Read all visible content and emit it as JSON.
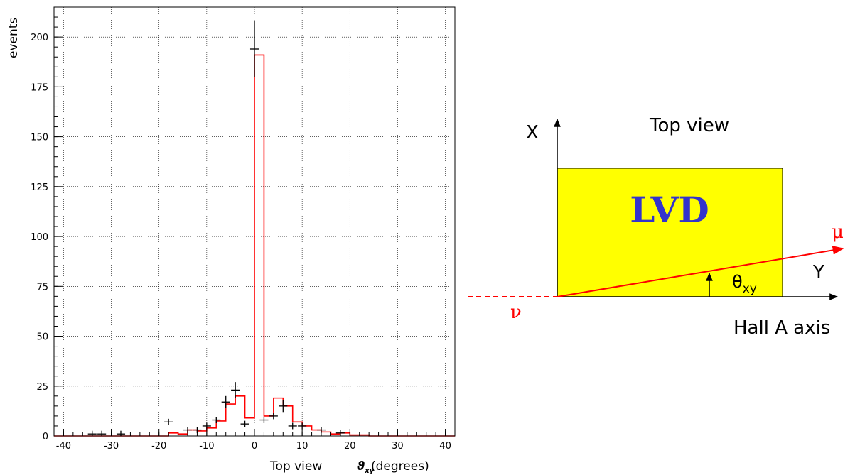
{
  "chart_data": {
    "type": "histogram",
    "xlabel": "Top view",
    "xlabel_symbol": "ϑ",
    "xlabel_symbol_sub": "xy",
    "xlabel_unit": "(degrees)",
    "ylabel": "events",
    "xlim": [
      -42,
      42
    ],
    "ylim": [
      0,
      215
    ],
    "grid": true,
    "x_ticks": [
      -40,
      -30,
      -20,
      -10,
      0,
      10,
      20,
      30,
      40
    ],
    "y_ticks": [
      0,
      25,
      50,
      75,
      100,
      125,
      150,
      175,
      200
    ],
    "histogram": {
      "color": "#ff0000",
      "bin_edges": [
        -42,
        -40,
        -38,
        -36,
        -34,
        -32,
        -30,
        -28,
        -26,
        -24,
        -22,
        -20,
        -18,
        -16,
        -14,
        -12,
        -10,
        -8,
        -6,
        -4,
        -2,
        0,
        2,
        4,
        6,
        8,
        10,
        12,
        14,
        16,
        18,
        20,
        22,
        24,
        26,
        28,
        30,
        32,
        34,
        36,
        38,
        40,
        42
      ],
      "counts": [
        0,
        0,
        0,
        0,
        0,
        0,
        0,
        0,
        0,
        0,
        0,
        0,
        1.5,
        1,
        3,
        2.5,
        4,
        7.5,
        16,
        20,
        9,
        191,
        10,
        19,
        15,
        7,
        5,
        3,
        2,
        1,
        1.5,
        0.5,
        0.5,
        0,
        0,
        0,
        0,
        0,
        0,
        0,
        0,
        0
      ]
    },
    "data_points": {
      "color": "#000000",
      "x": [
        -34,
        -32,
        -28,
        -18,
        -14,
        -12,
        -10,
        -8,
        -6,
        -4,
        -2,
        0,
        2,
        4,
        6,
        8,
        10,
        14,
        18
      ],
      "y": [
        1,
        1,
        1,
        7,
        3,
        3,
        5,
        8,
        17,
        23,
        6,
        194,
        8,
        10,
        15,
        5,
        5,
        3,
        1.5
      ],
      "err": [
        0,
        0,
        0,
        0,
        0,
        0,
        0,
        0,
        3,
        4,
        0,
        14,
        0,
        0,
        3,
        0,
        0,
        0,
        0
      ]
    }
  },
  "diagram": {
    "title": "Top view",
    "box_label": "LVD",
    "x_axis_label": "X",
    "y_axis_label": "Y",
    "hall_axis_label": "Hall A axis",
    "mu_label": "μ",
    "nu_label": "ν",
    "angle_label": "θ",
    "angle_sub": "xy",
    "colors": {
      "box_fill": "#ffff00",
      "box_text": "#3333cc",
      "track": "#ff0000"
    }
  }
}
